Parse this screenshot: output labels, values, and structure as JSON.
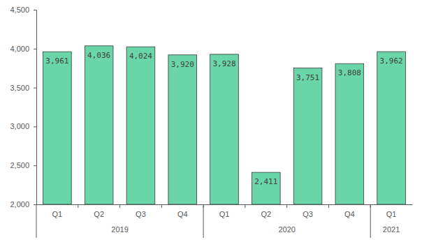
{
  "chart_data": {
    "type": "bar",
    "categories": [
      "Q1",
      "Q2",
      "Q3",
      "Q4",
      "Q1",
      "Q2",
      "Q3",
      "Q4",
      "Q1"
    ],
    "group_labels": [
      "2019",
      "2019",
      "2019",
      "2019",
      "2020",
      "2020",
      "2020",
      "2020",
      "2021"
    ],
    "values": [
      3961,
      4036,
      4024,
      3920,
      3928,
      2411,
      3751,
      3808,
      3962
    ],
    "value_labels": [
      "3,961",
      "4,036",
      "4,024",
      "3,920",
      "3,928",
      "2,411",
      "3,751",
      "3,808",
      "3,962"
    ],
    "color": "#6ad5a8",
    "ylim": [
      2000,
      4500
    ],
    "yticks": [
      {
        "value": 2000,
        "label": "2,000"
      },
      {
        "value": 2500,
        "label": "2,500"
      },
      {
        "value": 3000,
        "label": "3,000"
      },
      {
        "value": 3500,
        "label": "3,500"
      },
      {
        "value": 4000,
        "label": "4,000"
      },
      {
        "value": 4500,
        "label": "4,500"
      }
    ],
    "grid": false,
    "data_labels": true
  }
}
